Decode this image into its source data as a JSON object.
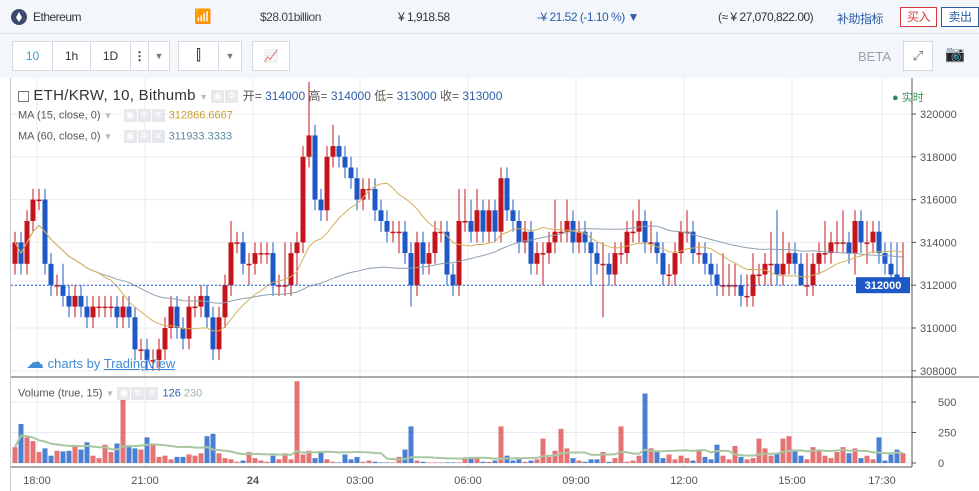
{
  "header": {
    "coin": "Ethereum",
    "market_cap": "$28.01billion",
    "price": "¥ 1,918.58",
    "change": "-¥ 21.52 (-1.10 %) ▼",
    "volume": "(≈ ¥ 27,070,822.00)",
    "indicators": "补助指标",
    "buy": "买入",
    "sell": "卖出",
    "icons": [
      "ethereum-logo",
      "chart-bars-icon"
    ]
  },
  "toolbar": {
    "intervals": [
      "10",
      "1h",
      "1D"
    ],
    "active_interval": "10",
    "beta": "BETA",
    "icons": [
      "more-icon",
      "chevron-down-icon",
      "candlestick-icon",
      "indicators-icon",
      "fullscreen-icon",
      "camera-icon"
    ]
  },
  "legend": {
    "symbol": "ETH/KRW, 10, Bithumb",
    "open_label": "开=",
    "open": "314000",
    "high_label": "高=",
    "high": "314000",
    "low_label": "低=",
    "low": "313000",
    "close_label": "收=",
    "close": "313000",
    "ma15_label": "MA (15, close, 0)",
    "ma15": "312866.6667",
    "ma60_label": "MA (60, close, 0)",
    "ma60": "311933.3333",
    "volume_label": "Volume (true, 15)",
    "volume_val": "126",
    "volume_ma": "230",
    "live": "实时",
    "watermark_prefix": "charts by",
    "watermark_brand": "TradingView"
  },
  "colors": {
    "up": "#c4141c",
    "down": "#1e58c6",
    "ma15": "#d4b05a",
    "ma60": "#8fa0b0",
    "volume_ma": "#a9c7a0",
    "last_price": "#1e58c6"
  },
  "chart_data": {
    "type": "candlestick",
    "title": "ETH/KRW, 10, Bithumb",
    "ylim": [
      307500,
      322000
    ],
    "y_ticks": [
      "320000",
      "318000",
      "316000",
      "314000",
      "312000",
      "310000",
      "308000"
    ],
    "last_price": "312000",
    "x_ticks": [
      "18:00",
      "21:00",
      "24",
      "03:00",
      "06:00",
      "09:00",
      "12:00",
      "15:00",
      "17:30"
    ],
    "volume_ticks": [
      "500",
      "250",
      "0"
    ],
    "open": [
      313000,
      314000,
      313000,
      315000,
      316000,
      316000,
      313000,
      312000,
      312000,
      311500,
      311000,
      311500,
      311000,
      310500,
      311000,
      311000,
      311000,
      311000,
      310500,
      311000,
      310500,
      309000,
      309000,
      308500,
      308500,
      309000,
      310000,
      311000,
      310000,
      309500,
      311000,
      311000,
      311500,
      310500,
      309000,
      310500,
      312000,
      314000,
      314000,
      313000,
      313000,
      313500,
      313500,
      313500,
      312000,
      312000,
      312000,
      313500,
      314000,
      318000,
      319000,
      316000,
      315500,
      318000,
      318500,
      318000,
      317500,
      317000,
      316000,
      316500,
      316500,
      315500,
      315000,
      314500,
      314500,
      314500,
      313500,
      312000,
      314000,
      313000,
      313500,
      314500,
      314500,
      312500,
      312000,
      315000,
      315000,
      314500,
      315500,
      314500,
      315500,
      314500,
      317000,
      315500,
      315000,
      314000,
      314500,
      313000,
      313500,
      313500,
      314000,
      314500,
      314500,
      315000,
      314000,
      314500,
      314000,
      313500,
      313000,
      313000,
      312500,
      313500,
      313500,
      314500,
      314500,
      315000,
      314000,
      314000,
      313500,
      312500,
      312500,
      313500,
      314500,
      314500,
      313500,
      313500,
      313000,
      312500,
      312000,
      312000,
      312000,
      312000,
      311500,
      311500,
      312500,
      312500,
      313000,
      313000,
      312500,
      313000,
      313500,
      313000,
      312000,
      312000,
      313000,
      313500,
      313500,
      314000,
      314000,
      314000,
      313500,
      315000,
      314000,
      314000,
      314500,
      313500,
      313000,
      312500,
      312000
    ],
    "high": [
      314500,
      314500,
      315500,
      316500,
      316500,
      316500,
      313500,
      312500,
      313000,
      312000,
      312000,
      312000,
      311500,
      311500,
      311500,
      311500,
      311500,
      311500,
      311500,
      311500,
      311000,
      309500,
      309500,
      309000,
      309500,
      310500,
      311500,
      311500,
      310500,
      311500,
      311500,
      312000,
      312000,
      311000,
      311000,
      312500,
      315000,
      314500,
      314500,
      313500,
      314000,
      314000,
      314000,
      314000,
      312500,
      314000,
      314000,
      314500,
      318500,
      321500,
      319500,
      316500,
      318500,
      319500,
      319000,
      318500,
      318000,
      317500,
      317000,
      317000,
      317000,
      316000,
      315500,
      315000,
      315000,
      315000,
      314000,
      314500,
      314500,
      314000,
      315000,
      315000,
      315000,
      313000,
      316500,
      316500,
      316000,
      316500,
      316000,
      316000,
      316000,
      317500,
      317500,
      316000,
      315500,
      315000,
      315000,
      314000,
      314000,
      314500,
      316000,
      315000,
      316000,
      315500,
      315000,
      315000,
      314500,
      314000,
      314000,
      313500,
      314000,
      314000,
      315000,
      315500,
      316000,
      315500,
      315000,
      314500,
      314000,
      313000,
      314000,
      315000,
      315500,
      315000,
      314000,
      314000,
      313500,
      313000,
      313500,
      313000,
      313000,
      312500,
      312500,
      313500,
      313000,
      313500,
      314500,
      315500,
      314500,
      314000,
      314000,
      313500,
      313500,
      313500,
      314000,
      315000,
      314500,
      315000,
      315500,
      314500,
      315500,
      315500,
      315000,
      315000,
      315000,
      314000,
      314000,
      314000,
      314000
    ],
    "low": [
      312500,
      312500,
      312500,
      314500,
      315500,
      312500,
      311500,
      311500,
      311000,
      310500,
      310500,
      310500,
      310000,
      310000,
      310500,
      310500,
      310500,
      310000,
      310000,
      310000,
      308500,
      308500,
      308000,
      308000,
      308000,
      308500,
      309500,
      309500,
      309000,
      309000,
      310500,
      310500,
      310000,
      308500,
      308500,
      310000,
      311500,
      313500,
      312500,
      312000,
      312500,
      313000,
      313000,
      311500,
      311500,
      311500,
      311500,
      312000,
      313500,
      317500,
      315500,
      315000,
      315000,
      317500,
      317500,
      317000,
      316500,
      315500,
      315500,
      316000,
      315000,
      314500,
      314000,
      314000,
      313500,
      313000,
      311000,
      311500,
      312500,
      312500,
      313000,
      314000,
      312000,
      311500,
      311500,
      314500,
      314000,
      314000,
      314000,
      314000,
      314000,
      314000,
      315000,
      314500,
      313500,
      313500,
      312500,
      312500,
      312000,
      313000,
      313500,
      314000,
      314000,
      313500,
      313500,
      313500,
      312000,
      312500,
      310500,
      312000,
      312000,
      313000,
      313000,
      314000,
      314000,
      313500,
      313500,
      313000,
      312000,
      312000,
      312000,
      313000,
      314000,
      313000,
      313000,
      312500,
      312000,
      311500,
      311500,
      311500,
      311500,
      311000,
      311000,
      311000,
      312000,
      312000,
      312000,
      312000,
      312000,
      312500,
      312500,
      312000,
      311500,
      311500,
      312500,
      313000,
      313000,
      313500,
      313500,
      313000,
      312500,
      313500,
      313000,
      313500,
      313000,
      312500,
      312000,
      312000,
      312000
    ],
    "close": [
      314000,
      313000,
      315000,
      316000,
      316000,
      313000,
      312000,
      312000,
      311500,
      311000,
      311500,
      311000,
      310500,
      311000,
      311000,
      311000,
      311000,
      310500,
      311000,
      310500,
      309000,
      309000,
      308500,
      308500,
      309000,
      310000,
      311000,
      310000,
      309500,
      311000,
      311000,
      311500,
      310500,
      309000,
      310500,
      312000,
      314000,
      314000,
      313000,
      313000,
      313500,
      313500,
      313500,
      312000,
      312000,
      312000,
      313500,
      314000,
      318000,
      319000,
      316000,
      315500,
      318000,
      318500,
      318000,
      317500,
      317000,
      316000,
      316500,
      316500,
      315500,
      315000,
      314500,
      314500,
      314500,
      313500,
      312000,
      314000,
      313000,
      313500,
      314500,
      314500,
      312500,
      312000,
      315000,
      315000,
      314500,
      315500,
      314500,
      315500,
      314500,
      317000,
      315500,
      315000,
      314000,
      314500,
      313000,
      313500,
      313500,
      314000,
      314500,
      314500,
      315000,
      314000,
      314500,
      314000,
      313500,
      313000,
      313000,
      312500,
      313500,
      313500,
      314500,
      314500,
      315000,
      314000,
      314000,
      313500,
      312500,
      312500,
      313500,
      314500,
      314500,
      313500,
      313500,
      313000,
      312500,
      312000,
      312000,
      312000,
      312000,
      311500,
      311500,
      312500,
      312500,
      313000,
      313000,
      312500,
      313000,
      313500,
      313000,
      312000,
      312000,
      313000,
      313500,
      313500,
      314000,
      314000,
      314000,
      313500,
      315000,
      314000,
      314000,
      314500,
      313500,
      313000,
      312500,
      312000,
      312000
    ],
    "volume": [
      130,
      320,
      210,
      180,
      90,
      120,
      60,
      100,
      95,
      100,
      140,
      110,
      170,
      60,
      40,
      150,
      90,
      160,
      565,
      130,
      120,
      110,
      210,
      150,
      50,
      60,
      30,
      50,
      50,
      70,
      60,
      80,
      220,
      240,
      80,
      40,
      30,
      10,
      20,
      90,
      40,
      20,
      10,
      60,
      30,
      80,
      30,
      670,
      70,
      100,
      40,
      90,
      30,
      10,
      5,
      70,
      30,
      50,
      10,
      20,
      10,
      5,
      5,
      5,
      50,
      110,
      300,
      20,
      10,
      5,
      5,
      5,
      5,
      5,
      5,
      40,
      40,
      40,
      10,
      10,
      20,
      300,
      60,
      20,
      30,
      10,
      20,
      30,
      200,
      50,
      100,
      280,
      120,
      40,
      20,
      10,
      30,
      30,
      90,
      10,
      40,
      300,
      10,
      20,
      60,
      570,
      120,
      90,
      40,
      70,
      30,
      60,
      40,
      20,
      110,
      50,
      30,
      150,
      60,
      30,
      140,
      50,
      30,
      40,
      200,
      120,
      60,
      80,
      200,
      220,
      110,
      60,
      30,
      130,
      100,
      60,
      40,
      90,
      130,
      80,
      120,
      40,
      60,
      30,
      210,
      20,
      70,
      110,
      80
    ]
  }
}
